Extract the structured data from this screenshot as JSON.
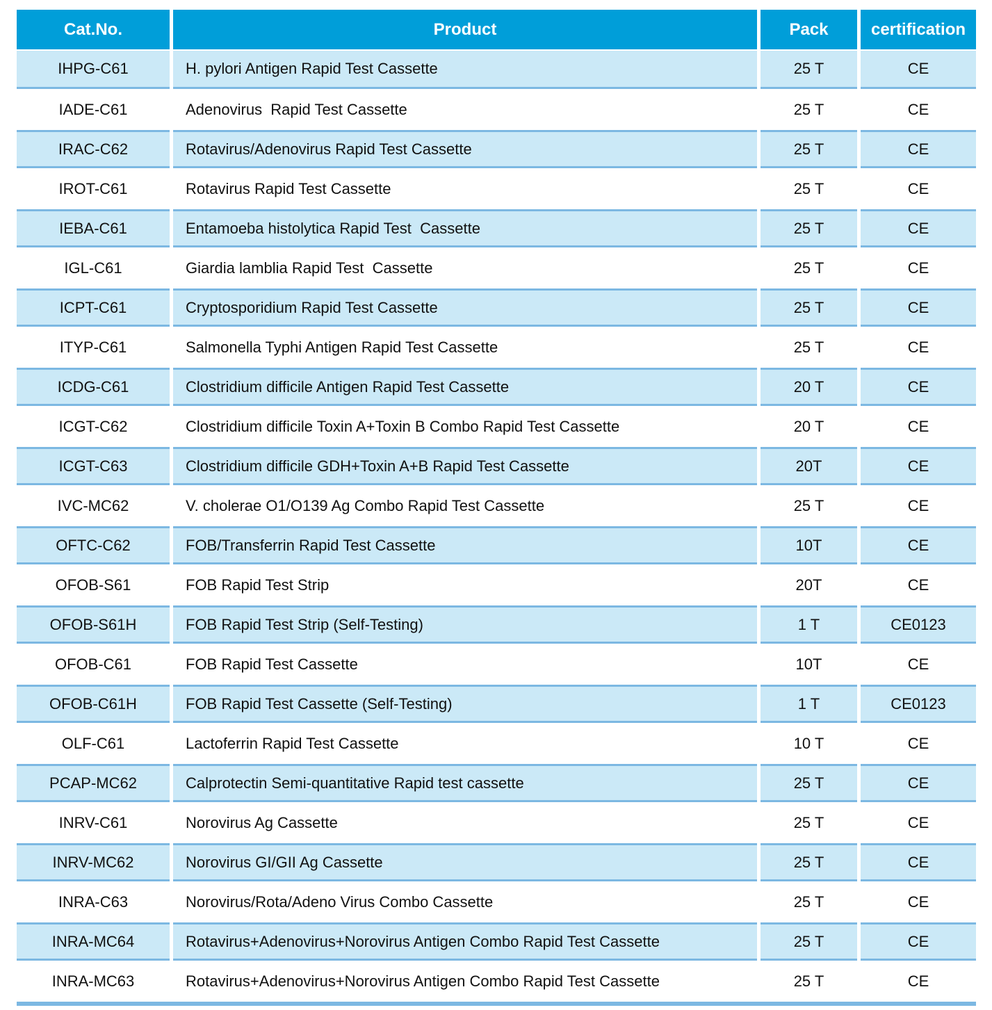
{
  "table": {
    "columns": [
      {
        "key": "cat_no",
        "label": "Cat.No."
      },
      {
        "key": "product",
        "label": "Product"
      },
      {
        "key": "pack",
        "label": "Pack"
      },
      {
        "key": "certification",
        "label": "certification"
      }
    ],
    "rows": [
      {
        "cat_no": "IHPG-C61",
        "product": "H. pylori Antigen Rapid Test Cassette",
        "pack": "25 T",
        "certification": "CE"
      },
      {
        "cat_no": "IADE-C61",
        "product": "Adenovirus  Rapid Test Cassette",
        "pack": "25 T",
        "certification": "CE"
      },
      {
        "cat_no": "IRAC-C62",
        "product": "Rotavirus/Adenovirus Rapid Test Cassette",
        "pack": "25 T",
        "certification": "CE"
      },
      {
        "cat_no": "IROT-C61",
        "product": "Rotavirus Rapid Test Cassette",
        "pack": "25 T",
        "certification": "CE"
      },
      {
        "cat_no": "IEBA-C61",
        "product": "Entamoeba histolytica Rapid Test  Cassette",
        "pack": "25 T",
        "certification": "CE"
      },
      {
        "cat_no": "IGL-C61",
        "product": "Giardia lamblia Rapid Test  Cassette",
        "pack": "25 T",
        "certification": "CE"
      },
      {
        "cat_no": "ICPT-C61",
        "product": "Cryptosporidium Rapid Test Cassette",
        "pack": "25 T",
        "certification": "CE"
      },
      {
        "cat_no": "ITYP-C61",
        "product": "Salmonella Typhi Antigen Rapid Test Cassette",
        "pack": "25 T",
        "certification": "CE"
      },
      {
        "cat_no": "ICDG-C61",
        "product": "Clostridium difficile Antigen Rapid Test Cassette",
        "pack": "20 T",
        "certification": "CE"
      },
      {
        "cat_no": "ICGT-C62",
        "product": "Clostridium difficile Toxin A+Toxin B Combo Rapid Test Cassette",
        "pack": "20 T",
        "certification": "CE"
      },
      {
        "cat_no": "ICGT-C63",
        "product": "Clostridium difficile GDH+Toxin A+B Rapid Test Cassette",
        "pack": "20T",
        "certification": "CE"
      },
      {
        "cat_no": "IVC-MC62",
        "product": "V. cholerae O1/O139 Ag Combo Rapid Test Cassette",
        "pack": "25 T",
        "certification": "CE"
      },
      {
        "cat_no": "OFTC-C62",
        "product": "FOB/Transferrin Rapid Test Cassette",
        "pack": "10T",
        "certification": "CE"
      },
      {
        "cat_no": "OFOB-S61",
        "product": "FOB Rapid Test Strip",
        "pack": "20T",
        "certification": "CE"
      },
      {
        "cat_no": "OFOB-S61H",
        "product": "FOB Rapid Test Strip (Self-Testing)",
        "pack": "1 T",
        "certification": "CE0123"
      },
      {
        "cat_no": "OFOB-C61",
        "product": "FOB Rapid Test Cassette",
        "pack": "10T",
        "certification": "CE"
      },
      {
        "cat_no": "OFOB-C61H",
        "product": "FOB Rapid Test Cassette (Self-Testing)",
        "pack": "1 T",
        "certification": "CE0123"
      },
      {
        "cat_no": "OLF-C61",
        "product": "Lactoferrin Rapid Test Cassette",
        "pack": "10 T",
        "certification": "CE"
      },
      {
        "cat_no": "PCAP-MC62",
        "product": "Calprotectin Semi-quantitative Rapid test cassette",
        "pack": "25 T",
        "certification": "CE"
      },
      {
        "cat_no": "INRV-C61",
        "product": "Norovirus Ag Cassette",
        "pack": "25 T",
        "certification": "CE"
      },
      {
        "cat_no": "INRV-MC62",
        "product": "Norovirus GI/GII Ag Cassette",
        "pack": "25 T",
        "certification": "CE"
      },
      {
        "cat_no": "INRA-C63",
        "product": "Norovirus/Rota/Adeno Virus Combo Cassette",
        "pack": "25 T",
        "certification": "CE"
      },
      {
        "cat_no": "INRA-MC64",
        "product": "Rotavirus+Adenovirus+Norovirus Antigen Combo Rapid Test Cassette",
        "pack": "25 T",
        "certification": "CE"
      },
      {
        "cat_no": "INRA-MC63",
        "product": "Rotavirus+Adenovirus+Norovirus Antigen Combo Rapid Test Cassette",
        "pack": "25 T",
        "certification": "CE"
      }
    ],
    "colors": {
      "header_bg": "#009ed9",
      "header_text": "#ffffff",
      "row_alt_bg": "#cbe9f7",
      "row_bg": "#ffffff",
      "separator_line": "#7cb8e2",
      "body_text": "#111111"
    }
  }
}
